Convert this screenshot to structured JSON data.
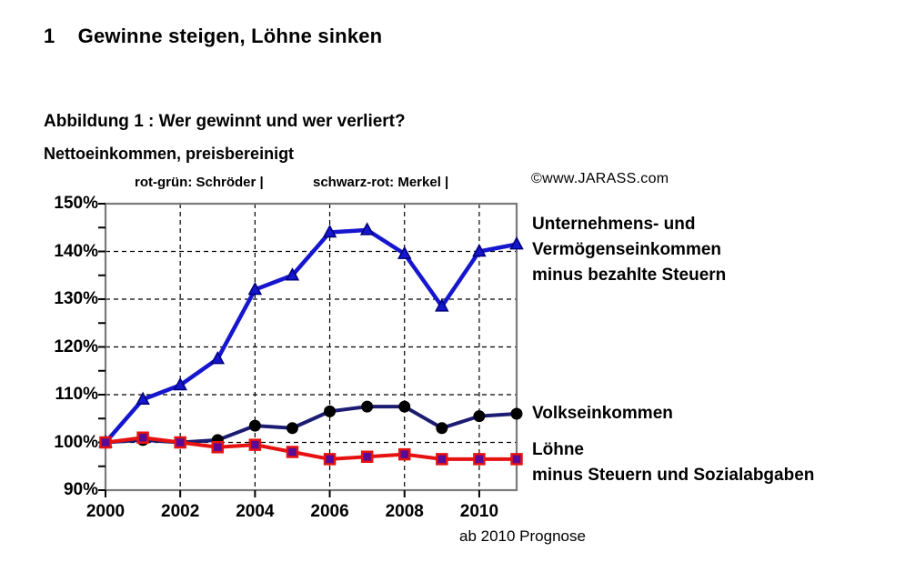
{
  "page": {
    "heading": "1    Gewinne steigen, Löhne sinken",
    "copyright": "©www.JARASS.com"
  },
  "chart_data": {
    "type": "line",
    "title": "Abbildung 1 : Wer gewinnt und wer verliert?",
    "subtitle": "Nettoeinkommen, preisbereinigt",
    "footnote": "ab 2010 Prognose",
    "era_labels": [
      "rot-grün: Schröder |",
      "schwarz-rot: Merkel |"
    ],
    "x": [
      2000,
      2001,
      2002,
      2003,
      2004,
      2005,
      2006,
      2007,
      2008,
      2009,
      2010,
      2011
    ],
    "x_tick_labels": [
      "2000",
      "2002",
      "2004",
      "2006",
      "2008",
      "2010"
    ],
    "x_tick_years": [
      2000,
      2002,
      2004,
      2006,
      2008,
      2010
    ],
    "y_tick_labels": [
      "150%",
      "140%",
      "130%",
      "120%",
      "110%",
      "100%",
      "90%"
    ],
    "y_tick_values": [
      150,
      140,
      130,
      120,
      110,
      100,
      90
    ],
    "xlim": [
      2000,
      2011
    ],
    "ylim": [
      90,
      150
    ],
    "grid": "dashed horizontal at 100-140% and vertical at even years",
    "frame_color": "#7a7a7a",
    "series": [
      {
        "name": "Unternehmens- und Vermögenseinkommen minus bezahlte Steuern",
        "label_lines": [
          "Unternehmens- und",
          "Vermögenseinkommen",
          "minus bezahlte Steuern"
        ],
        "color": "#1616CE",
        "marker": "triangle",
        "marker_fill": "#1616CE",
        "marker_edge": "#00007A",
        "values": [
          100,
          109,
          112,
          117.5,
          132,
          135,
          144,
          144.5,
          139.5,
          128.5,
          140,
          141.5
        ]
      },
      {
        "name": "Volkseinkommen",
        "label_lines": [
          "Volkseinkommen"
        ],
        "color": "#1C1C72",
        "marker": "circle",
        "marker_fill": "#000000",
        "marker_edge": "#000000",
        "values": [
          100,
          100.5,
          100,
          100.5,
          103.5,
          103,
          106.5,
          107.5,
          107.5,
          103,
          105.5,
          106
        ]
      },
      {
        "name": "Löhne minus Steuern und Sozialabgaben",
        "label_lines": [
          "Löhne",
          "minus Steuern und Sozialabgaben"
        ],
        "color": "#E61210",
        "marker": "square",
        "marker_fill": "#5A0A96",
        "marker_edge": "#E61210",
        "values": [
          100,
          101,
          100,
          99,
          99.5,
          98,
          96.5,
          97,
          97.5,
          96.5,
          96.5,
          96.5
        ]
      }
    ]
  }
}
